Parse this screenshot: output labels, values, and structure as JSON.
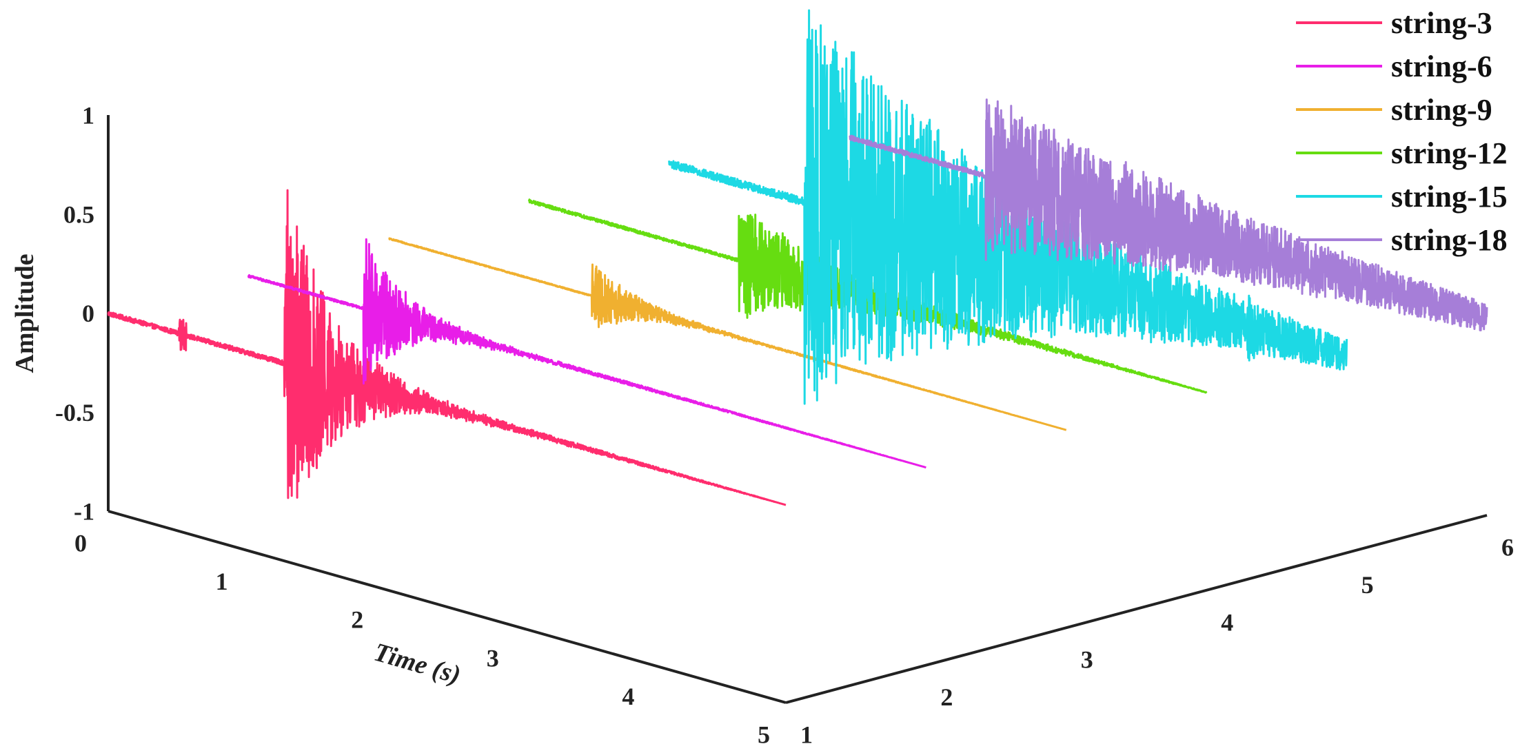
{
  "chart_data": {
    "type": "line",
    "projection": "3d",
    "title": "",
    "zlabel": "Amplitude",
    "xlabel": "Time (s)",
    "ylabel": "",
    "xlim": [
      0,
      5
    ],
    "ylim": [
      1,
      6
    ],
    "zlim": [
      -1,
      1
    ],
    "x_ticks": [
      "0",
      "1",
      "2",
      "3",
      "4",
      "5"
    ],
    "y_ticks": [
      "1",
      "2",
      "3",
      "4",
      "5",
      "6"
    ],
    "z_ticks": [
      "1",
      "0.5",
      "0",
      "-0.5",
      "-1"
    ],
    "legend_position": "top-right",
    "series": [
      {
        "name": "string-3",
        "color": "#ff2d6e",
        "y": 1.0,
        "x_start": 0.0,
        "x_end": 5.0,
        "onset": 1.3,
        "peak": 0.95,
        "decay": 0.35,
        "tail": 0.03,
        "wobble_at": 0.55,
        "end_height": 0.0
      },
      {
        "name": "string-6",
        "color": "#e81ee8",
        "y": 2.0,
        "x_start": 0.0,
        "x_end": 5.0,
        "onset": 0.85,
        "peak": 0.38,
        "decay": 0.3,
        "tail": 0.015,
        "wobble_at": null,
        "end_height": 0.0
      },
      {
        "name": "string-9",
        "color": "#f0b030",
        "y": 3.0,
        "x_start": 0.0,
        "x_end": 5.0,
        "onset": 1.5,
        "peak": 0.18,
        "decay": 0.3,
        "tail": 0.008,
        "wobble_at": null,
        "end_height": 0.0
      },
      {
        "name": "string-12",
        "color": "#66dd11",
        "y": 4.0,
        "x_start": 0.0,
        "x_end": 5.0,
        "onset": 1.55,
        "peak": 0.3,
        "decay": 0.7,
        "tail": 0.02,
        "wobble_at": null,
        "end_height": 0.0
      },
      {
        "name": "string-15",
        "color": "#1dd9e4",
        "y": 5.0,
        "x_start": 0.0,
        "x_end": 5.0,
        "onset": 1.0,
        "peak": 1.0,
        "decay": 1.6,
        "tail": 0.05,
        "wobble_at": 4.3,
        "end_height": 0.0
      },
      {
        "name": "string-18",
        "color": "#a67ed8",
        "y": 6.0,
        "x_start": 0.3,
        "x_end": 5.0,
        "onset": 1.3,
        "peak": 0.4,
        "decay": 2.2,
        "tail": 0.03,
        "wobble_at": null,
        "end_height": 0.0
      }
    ]
  }
}
